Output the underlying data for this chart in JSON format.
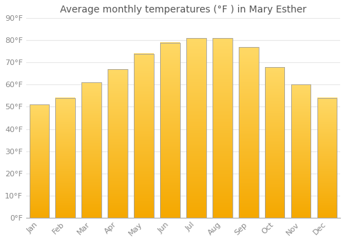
{
  "title": "Average monthly temperatures (°F ) in Mary Esther",
  "months": [
    "Jan",
    "Feb",
    "Mar",
    "Apr",
    "May",
    "Jun",
    "Jul",
    "Aug",
    "Sep",
    "Oct",
    "Nov",
    "Dec"
  ],
  "values": [
    51,
    54,
    61,
    67,
    74,
    79,
    81,
    81,
    77,
    68,
    60,
    54
  ],
  "bar_color_bottom": "#F5A800",
  "bar_color_top": "#FFD966",
  "bar_edge_color": "#A0A0A0",
  "background_color": "#FFFFFF",
  "ylim": [
    0,
    90
  ],
  "yticks": [
    0,
    10,
    20,
    30,
    40,
    50,
    60,
    70,
    80,
    90
  ],
  "ytick_labels": [
    "0°F",
    "10°F",
    "20°F",
    "30°F",
    "40°F",
    "50°F",
    "60°F",
    "70°F",
    "80°F",
    "90°F"
  ],
  "title_fontsize": 10,
  "tick_fontsize": 8,
  "grid_color": "#E8E8E8",
  "bar_width": 0.75
}
